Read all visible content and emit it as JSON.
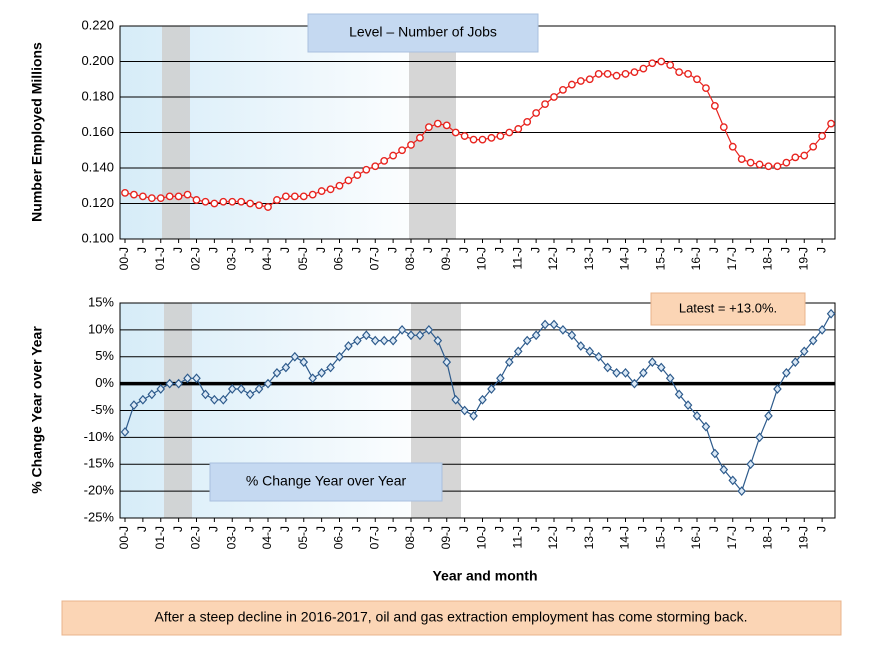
{
  "chart_data": [
    {
      "type": "line",
      "title": "Level – Number of Jobs",
      "ylabel": "Number Employed Millions",
      "categories": [
        "00-J",
        null,
        "J",
        null,
        "01-J",
        null,
        "J",
        null,
        "02-J",
        null,
        "J",
        null,
        "03-J",
        null,
        "J",
        null,
        "04-J",
        null,
        "J",
        null,
        "05-J",
        null,
        "J",
        null,
        "06-J",
        null,
        "J",
        null,
        "07-J",
        null,
        "J",
        null,
        "08-J",
        null,
        "J",
        null,
        "09-J",
        null,
        "J",
        null,
        "10-J",
        null,
        "J",
        null,
        "11-J",
        null,
        "J",
        null,
        "12-J",
        null,
        "J",
        null,
        "13-J",
        null,
        "J",
        null,
        "14-J",
        null,
        "J",
        null,
        "15-J",
        null,
        "J",
        null,
        "16-J",
        null,
        "J",
        null,
        "17-J",
        null,
        "J",
        null,
        "18-J",
        null,
        "J",
        null,
        "19-J",
        null,
        "J",
        null
      ],
      "values": [
        0.126,
        0.125,
        0.124,
        0.123,
        0.123,
        0.124,
        0.124,
        0.125,
        0.122,
        0.121,
        0.12,
        0.121,
        0.121,
        0.121,
        0.12,
        0.119,
        0.118,
        0.122,
        0.124,
        0.124,
        0.124,
        0.125,
        0.127,
        0.128,
        0.13,
        0.133,
        0.136,
        0.139,
        0.141,
        0.144,
        0.147,
        0.15,
        0.153,
        0.157,
        0.163,
        0.165,
        0.164,
        0.16,
        0.158,
        0.156,
        0.156,
        0.157,
        0.158,
        0.16,
        0.162,
        0.166,
        0.171,
        0.176,
        0.18,
        0.184,
        0.187,
        0.189,
        0.19,
        0.193,
        0.193,
        0.192,
        0.193,
        0.194,
        0.196,
        0.199,
        0.2,
        0.198,
        0.194,
        0.193,
        0.19,
        0.185,
        0.175,
        0.163,
        0.152,
        0.145,
        0.143,
        0.142,
        0.141,
        0.141,
        0.143,
        0.146,
        0.147,
        0.152,
        0.158,
        0.165
      ],
      "color": "#e8241f",
      "ylim": [
        0.1,
        0.22
      ],
      "yticks": [
        {
          "value": 0.1,
          "label": "0.100"
        },
        {
          "value": 0.12,
          "label": "0.120"
        },
        {
          "value": 0.14,
          "label": "0.140"
        },
        {
          "value": 0.16,
          "label": "0.160"
        },
        {
          "value": 0.18,
          "label": "0.180"
        },
        {
          "value": 0.2,
          "label": "0.200"
        },
        {
          "value": 0.22,
          "label": "0.220"
        }
      ],
      "grid": true
    },
    {
      "type": "line",
      "title": "% Change Year over Year",
      "annotation": "Latest = +13.0%.",
      "ylabel": "% Change Year over Year",
      "xlabel": "Year and month",
      "categories": [
        "00-J",
        null,
        "J",
        null,
        "01-J",
        null,
        "J",
        null,
        "02-J",
        null,
        "J",
        null,
        "03-J",
        null,
        "J",
        null,
        "04-J",
        null,
        "J",
        null,
        "05-J",
        null,
        "J",
        null,
        "06-J",
        null,
        "J",
        null,
        "07-J",
        null,
        "J",
        null,
        "08-J",
        null,
        "J",
        null,
        "09-J",
        null,
        "J",
        null,
        "10-J",
        null,
        "J",
        null,
        "11-J",
        null,
        "J",
        null,
        "12-J",
        null,
        "J",
        null,
        "13-J",
        null,
        "J",
        null,
        "14-J",
        null,
        "J",
        null,
        "15-J",
        null,
        "J",
        null,
        "16-J",
        null,
        "J",
        null,
        "17-J",
        null,
        "J",
        null,
        "18-J",
        null,
        "J",
        null,
        "19-J",
        null,
        "J",
        null
      ],
      "values": [
        -9,
        -4,
        -3,
        -2,
        -1,
        0,
        0,
        1,
        1,
        -2,
        -3,
        -3,
        -1,
        -1,
        -2,
        -1,
        0,
        2,
        3,
        5,
        4,
        1,
        2,
        3,
        5,
        7,
        8,
        9,
        8,
        8,
        8,
        10,
        9,
        9,
        10,
        8,
        4,
        -3,
        -5,
        -6,
        -3,
        -1,
        1,
        4,
        6,
        8,
        9,
        11,
        11,
        10,
        9,
        7,
        6,
        5,
        3,
        2,
        2,
        0,
        2,
        4,
        3,
        1,
        -2,
        -4,
        -6,
        -8,
        -13,
        -16,
        -18,
        -20,
        -15,
        -10,
        -6,
        -1,
        2,
        4,
        6,
        8,
        10,
        13
      ],
      "color": "#2e5b8c",
      "ylim": [
        -25,
        15
      ],
      "yticks": [
        {
          "value": -25,
          "label": "-25%"
        },
        {
          "value": -20,
          "label": "-20%"
        },
        {
          "value": -15,
          "label": "-15%"
        },
        {
          "value": -10,
          "label": "-10%"
        },
        {
          "value": -5,
          "label": "-5%"
        },
        {
          "value": 0,
          "label": "0%"
        },
        {
          "value": 5,
          "label": "5%"
        },
        {
          "value": 10,
          "label": "10%"
        },
        {
          "value": 15,
          "label": "15%"
        }
      ],
      "grid": true,
      "zero_line": true
    }
  ],
  "caption": "After a steep decline in 2016-2017, oil and gas extraction employment has come storming back."
}
